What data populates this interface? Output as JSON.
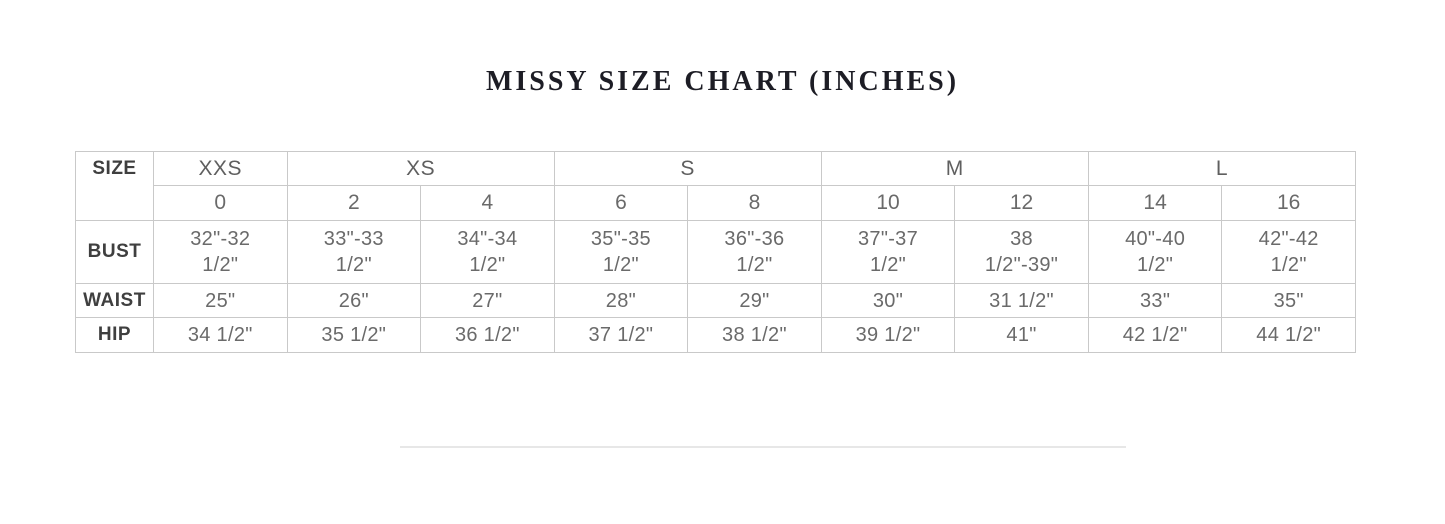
{
  "page": {
    "title": "MISSY SIZE CHART (INCHES)"
  },
  "table": {
    "corner_label": "SIZE",
    "size_groups": [
      {
        "label": "XXS",
        "span": 1
      },
      {
        "label": "XS",
        "span": 2
      },
      {
        "label": "S",
        "span": 2
      },
      {
        "label": "M",
        "span": 2
      },
      {
        "label": "L",
        "span": 2
      }
    ],
    "numeric_sizes": [
      "0",
      "2",
      "4",
      "6",
      "8",
      "10",
      "12",
      "14",
      "16"
    ],
    "rows": [
      {
        "label": "BUST",
        "values": [
          "32\"-32 1/2\"",
          "33\"-33 1/2\"",
          "34\"-34 1/2\"",
          "35\"-35 1/2\"",
          "36\"-36 1/2\"",
          "37\"-37 1/2\"",
          "38 1/2\"-39\"",
          "40\"-40 1/2\"",
          "42\"-42 1/2\""
        ]
      },
      {
        "label": "WAIST",
        "values": [
          "25\"",
          "26\"",
          "27\"",
          "28\"",
          "29\"",
          "30\"",
          "31 1/2\"",
          "33\"",
          "35\""
        ]
      },
      {
        "label": "HIP",
        "values": [
          "34 1/2\"",
          "35 1/2\"",
          "36 1/2\"",
          "37 1/2\"",
          "38 1/2\"",
          "39 1/2\"",
          "41\"",
          "42 1/2\"",
          "44 1/2\""
        ]
      }
    ]
  },
  "colors": {
    "background": "#ffffff",
    "title_text": "#1d1d25",
    "label_text": "#3f3f3f",
    "data_text": "#6a6a6a",
    "table_border": "#c9c9c9",
    "divider": "#e7e7e7"
  }
}
